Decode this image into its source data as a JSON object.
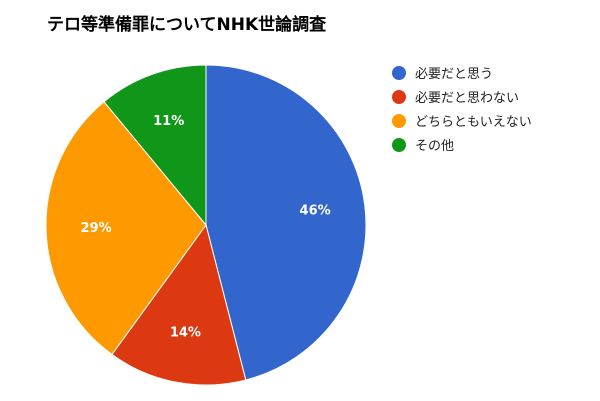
{
  "chart_data": {
    "type": "pie",
    "title": "テロ等準備罪についてNHK世論調査",
    "categories": [
      "必要だと思う",
      "必要だと思わない",
      "どちらともいえない",
      "その他"
    ],
    "values": [
      46,
      14,
      29,
      11
    ],
    "labels": [
      "46%",
      "14%",
      "29%",
      "11%"
    ],
    "colors": [
      "#3366cc",
      "#dc3912",
      "#ff9900",
      "#109618"
    ],
    "legend_position": "right",
    "start_angle": "12 o'clock",
    "direction": "clockwise"
  }
}
